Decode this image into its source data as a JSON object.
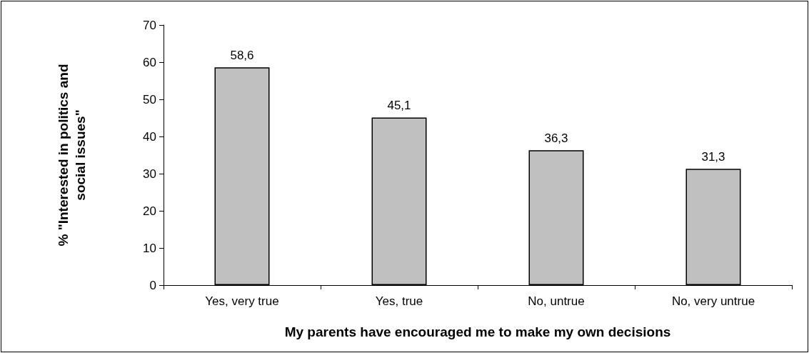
{
  "chart_data": {
    "type": "bar",
    "xlabel": "My parents have encouraged me to make my own decisions",
    "ylabel": "% \"Interested in politics and social issues\"",
    "categories": [
      "Yes, very true",
      "Yes, true",
      "No, untrue",
      "No, very untrue"
    ],
    "values": [
      58.6,
      45.1,
      36.3,
      31.3
    ],
    "color": "#c0c0c0",
    "value_labels": [
      "58,6",
      "45,1",
      "36,3",
      "31,3"
    ],
    "ylim": [
      0,
      70
    ],
    "yticks": [
      0,
      10,
      20,
      30,
      40,
      50,
      60,
      70
    ],
    "grid": false
  }
}
